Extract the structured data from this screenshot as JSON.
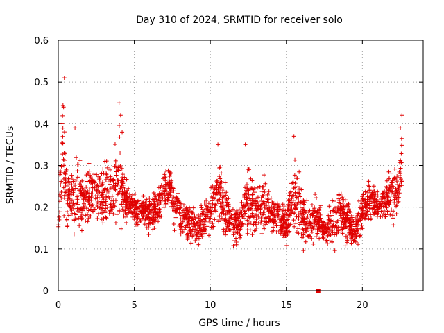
{
  "chart_data": {
    "type": "scatter",
    "title": "Day 310 of 2024, SRMTID for receiver solo",
    "xlabel": "GPS time / hours",
    "ylabel": "SRMTID / TECUs",
    "xlim": [
      0,
      24
    ],
    "ylim": [
      0,
      0.6
    ],
    "xticks": [
      0,
      5,
      10,
      15,
      20
    ],
    "xtick_labels": [
      "0",
      "5",
      "10",
      "15",
      "20"
    ],
    "yticks": [
      0,
      0.1,
      0.2,
      0.3,
      0.4,
      0.5,
      0.6
    ],
    "ytick_labels": [
      "0",
      "0.1",
      "0.2",
      "0.3",
      "0.4",
      "0.5",
      "0.6"
    ],
    "grid": true,
    "marker": "plus",
    "color": "#e00000",
    "series": [
      {
        "name": "SRMTID",
        "envelope": {
          "x": [
            0.0,
            0.2,
            0.3,
            0.6,
            1.0,
            1.3,
            1.6,
            2.0,
            2.4,
            2.8,
            3.0,
            3.3,
            3.6,
            4.0,
            4.3,
            4.6,
            5.0,
            5.5,
            6.0,
            6.5,
            7.0,
            7.3,
            7.6,
            8.0,
            8.5,
            9.0,
            9.5,
            10.0,
            10.5,
            11.0,
            11.5,
            12.0,
            12.5,
            13.0,
            13.5,
            14.0,
            14.5,
            15.0,
            15.5,
            16.0,
            16.5,
            17.0,
            17.5,
            18.0,
            18.5,
            19.0,
            19.5,
            20.0,
            20.5,
            21.0,
            21.5,
            22.0,
            22.3,
            22.6
          ],
          "low": [
            0.12,
            0.14,
            0.14,
            0.13,
            0.1,
            0.12,
            0.13,
            0.14,
            0.15,
            0.15,
            0.12,
            0.14,
            0.15,
            0.15,
            0.14,
            0.15,
            0.15,
            0.16,
            0.13,
            0.14,
            0.17,
            0.18,
            0.15,
            0.12,
            0.11,
            0.08,
            0.11,
            0.12,
            0.14,
            0.12,
            0.1,
            0.1,
            0.11,
            0.12,
            0.12,
            0.13,
            0.12,
            0.09,
            0.1,
            0.1,
            0.07,
            0.11,
            0.1,
            0.08,
            0.12,
            0.1,
            0.09,
            0.12,
            0.15,
            0.16,
            0.16,
            0.14,
            0.16,
            0.17
          ],
          "high": [
            0.2,
            0.4,
            0.5,
            0.3,
            0.35,
            0.35,
            0.3,
            0.32,
            0.3,
            0.32,
            0.32,
            0.34,
            0.3,
            0.45,
            0.3,
            0.27,
            0.24,
            0.24,
            0.23,
            0.25,
            0.3,
            0.32,
            0.3,
            0.24,
            0.23,
            0.21,
            0.22,
            0.25,
            0.35,
            0.27,
            0.22,
            0.23,
            0.34,
            0.26,
            0.3,
            0.24,
            0.23,
            0.22,
            0.36,
            0.27,
            0.24,
            0.24,
            0.18,
            0.23,
            0.26,
            0.24,
            0.2,
            0.26,
            0.28,
            0.25,
            0.27,
            0.33,
            0.3,
            0.42
          ]
        },
        "spikes": [
          {
            "x": 0.4,
            "y": 0.51
          },
          {
            "x": 0.35,
            "y": 0.44
          },
          {
            "x": 0.25,
            "y": 0.4
          },
          {
            "x": 1.1,
            "y": 0.39
          },
          {
            "x": 4.0,
            "y": 0.45
          },
          {
            "x": 4.1,
            "y": 0.42
          },
          {
            "x": 4.2,
            "y": 0.38
          },
          {
            "x": 10.5,
            "y": 0.35
          },
          {
            "x": 12.3,
            "y": 0.35
          },
          {
            "x": 15.5,
            "y": 0.37
          },
          {
            "x": 22.6,
            "y": 0.42
          },
          {
            "x": 22.5,
            "y": 0.39
          }
        ],
        "outlier": {
          "x": 17.1,
          "y": 0.0
        }
      }
    ]
  }
}
